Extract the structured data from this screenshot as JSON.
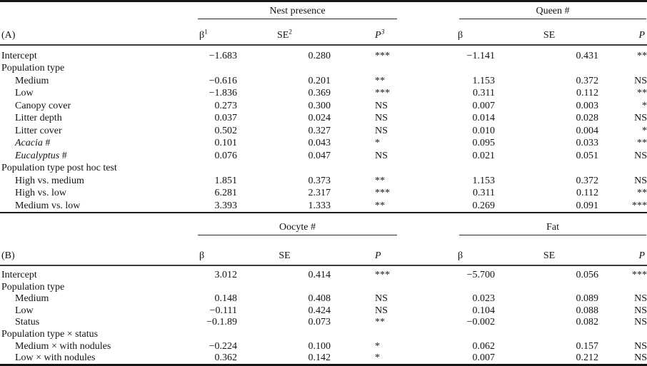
{
  "table": {
    "panels": [
      {
        "name": "A",
        "panel_label": "(A)",
        "column_groups": [
          {
            "title": "Nest presence",
            "columns": [
              {
                "text": "β",
                "sup": "1",
                "italic": false
              },
              {
                "text": "SE",
                "sup": "2",
                "italic": false
              },
              {
                "text": "P",
                "sup": "3",
                "italic": true
              }
            ]
          },
          {
            "title": "Queen #",
            "columns": [
              {
                "text": "β",
                "sup": "",
                "italic": false
              },
              {
                "text": "SE",
                "sup": "",
                "italic": false
              },
              {
                "text": "P",
                "sup": "",
                "italic": true
              }
            ]
          }
        ],
        "rows": [
          {
            "label": "Intercept",
            "indent": false,
            "cells": [
              "−1.683",
              "0.280",
              "***",
              "−1.141",
              "0.431",
              "**"
            ]
          },
          {
            "label": "Population type",
            "group_header": true
          },
          {
            "label": "Medium",
            "indent": true,
            "cells": [
              "−0.616",
              "0.201",
              "**",
              "1.153",
              "0.372",
              "NS"
            ]
          },
          {
            "label": "Low",
            "indent": true,
            "cells": [
              "−1.836",
              "0.369",
              "***",
              "0.311",
              "0.112",
              "**"
            ]
          },
          {
            "label": "Canopy cover",
            "indent": true,
            "cells": [
              "0.273",
              "0.300",
              "NS",
              "0.007",
              "0.003",
              "*"
            ]
          },
          {
            "label": "Litter depth",
            "indent": true,
            "cells": [
              "0.037",
              "0.024",
              "NS",
              "0.014",
              "0.028",
              "NS"
            ]
          },
          {
            "label": "Litter cover",
            "indent": true,
            "cells": [
              "0.502",
              "0.327",
              "NS",
              "0.010",
              "0.004",
              "*"
            ]
          },
          {
            "label": "Acacia #",
            "indent": true,
            "italic_part": "Acacia",
            "cells": [
              "0.101",
              "0.043",
              "*",
              "0.095",
              "0.033",
              "**"
            ]
          },
          {
            "label": "Eucalyptus #",
            "indent": true,
            "italic_part": "Eucalyptus",
            "cells": [
              "0.076",
              "0.047",
              "NS",
              "0.021",
              "0.051",
              "NS"
            ]
          },
          {
            "label": "Population type post hoc test",
            "group_header": true
          },
          {
            "label": "High vs. medium",
            "indent": true,
            "cells": [
              "1.851",
              "0.373",
              "**",
              "1.153",
              "0.372",
              "NS"
            ]
          },
          {
            "label": "High vs. low",
            "indent": true,
            "cells": [
              "6.281",
              "2.317",
              "***",
              "0.311",
              "0.112",
              "**"
            ]
          },
          {
            "label": "Medium vs. low",
            "indent": true,
            "cells": [
              "3.393",
              "1.333",
              "**",
              "0.269",
              "0.091",
              "***"
            ]
          }
        ]
      },
      {
        "name": "B",
        "panel_label": "(B)",
        "column_groups": [
          {
            "title": "Oocyte #",
            "columns": [
              {
                "text": "β",
                "sup": "",
                "italic": false
              },
              {
                "text": "SE",
                "sup": "",
                "italic": false
              },
              {
                "text": "P",
                "sup": "",
                "italic": true
              }
            ]
          },
          {
            "title": "Fat",
            "columns": [
              {
                "text": "β",
                "sup": "",
                "italic": false
              },
              {
                "text": "SE",
                "sup": "",
                "italic": false
              },
              {
                "text": "P",
                "sup": "",
                "italic": true
              }
            ]
          }
        ],
        "rows": [
          {
            "label": "Intercept",
            "indent": false,
            "cells": [
              "3.012",
              "0.414",
              "***",
              "−5.700",
              "0.056",
              "***"
            ]
          },
          {
            "label": "Population type",
            "group_header": true
          },
          {
            "label": "Medium",
            "indent": true,
            "cells": [
              "0.148",
              "0.408",
              "NS",
              "0.023",
              "0.089",
              "NS"
            ]
          },
          {
            "label": "Low",
            "indent": true,
            "cells": [
              "−0.111",
              "0.424",
              "NS",
              "0.104",
              "0.088",
              "NS"
            ]
          },
          {
            "label": "Status",
            "indent": true,
            "cells": [
              "−0.1.89",
              "0.073",
              "**",
              "−0.002",
              "0.082",
              "NS"
            ]
          },
          {
            "label": "Population type × status",
            "group_header": true
          },
          {
            "label": "Medium × with nodules",
            "indent": true,
            "cells": [
              "−0.224",
              "0.100",
              "*",
              "0.062",
              "0.157",
              "NS"
            ]
          },
          {
            "label": "Low × with nodules",
            "indent": true,
            "cells": [
              "0.362",
              "0.142",
              "*",
              "0.007",
              "0.212",
              "NS"
            ]
          }
        ]
      }
    ]
  }
}
